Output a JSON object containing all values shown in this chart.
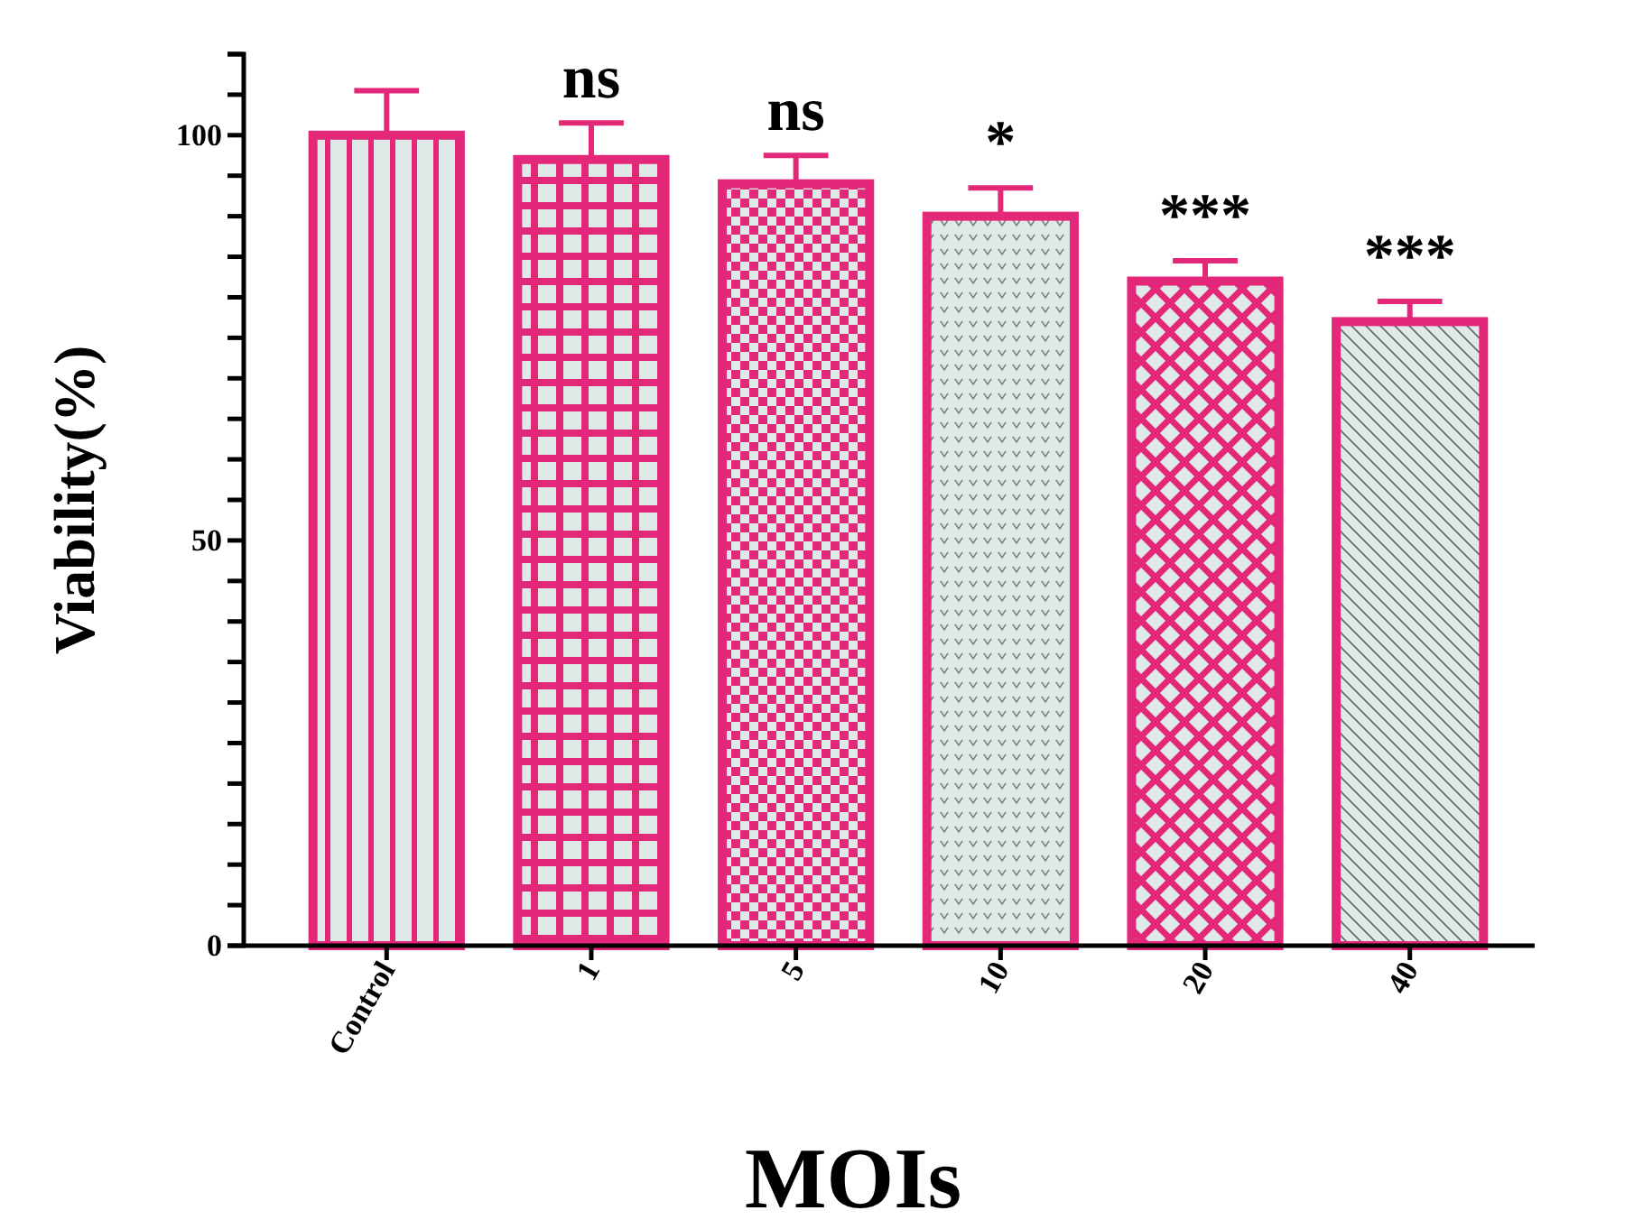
{
  "chart_data": {
    "type": "bar",
    "xlabel": "MOIs",
    "ylabel": "Viability(%)",
    "categories": [
      "Control",
      "1",
      "5",
      "10",
      "20",
      "40"
    ],
    "values": [
      100,
      97,
      94,
      90,
      82,
      77
    ],
    "errors": [
      [
        100,
        105.5
      ],
      [
        97,
        101.5
      ],
      [
        94,
        97.5
      ],
      [
        90,
        93.5
      ],
      [
        82,
        84.5
      ],
      [
        77,
        79.5
      ]
    ],
    "color": "#e3287a",
    "ylim": [
      0,
      110
    ],
    "yticks": [
      0,
      {
        "value": 5,
        "label": null
      },
      {
        "value": 10,
        "label": null
      },
      {
        "value": 15,
        "label": null
      },
      {
        "value": 20,
        "label": null
      },
      {
        "value": 25,
        "label": null
      },
      {
        "value": 30,
        "label": null
      },
      {
        "value": 35,
        "label": null
      },
      {
        "value": 40,
        "label": null
      },
      {
        "value": 45,
        "label": null
      },
      50,
      {
        "value": 55,
        "label": null
      },
      {
        "value": 60,
        "label": null
      },
      {
        "value": 65,
        "label": null
      },
      {
        "value": 70,
        "label": null
      },
      {
        "value": 75,
        "label": null
      },
      {
        "value": 80,
        "label": null
      },
      {
        "value": 85,
        "label": null
      },
      {
        "value": 90,
        "label": null
      },
      {
        "value": 95,
        "label": null
      },
      100,
      {
        "value": 105,
        "label": null
      },
      {
        "value": 110,
        "label": null
      }
    ],
    "grid": false,
    "annotations": [
      "ns",
      "ns",
      "*",
      "***",
      "***"
    ]
  }
}
